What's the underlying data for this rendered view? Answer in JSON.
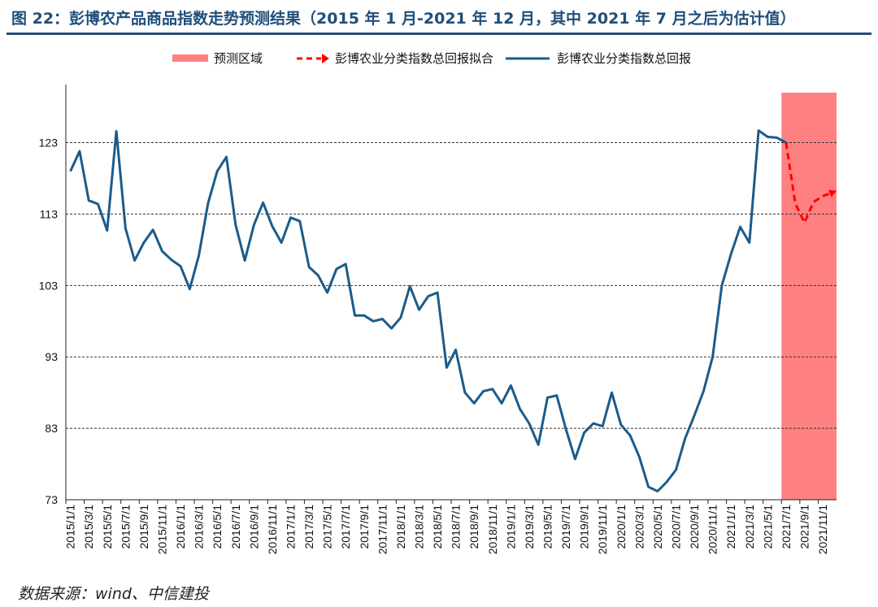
{
  "title": "图 22：彭博农产品商品指数走势预测结果（2015 年 1 月-2021 年 12 月，其中 2021 年 7 月之后为估计值）",
  "source": "数据来源：wind、中信建投",
  "colors": {
    "actual": "#1b5b8a",
    "forecast": "#ff0000",
    "forecast_region": "#ff8080",
    "title": "#1f4e79"
  },
  "chart_data": {
    "type": "line",
    "legend": [
      "预测区域",
      "彭博农业分类指数总回报拟合",
      "彭博农业分类指数总回报"
    ],
    "legend_position": "top",
    "grid": "horizontal-dashed",
    "ylim": [
      73,
      130
    ],
    "yticks": [
      73,
      83,
      93,
      103,
      113,
      123
    ],
    "xticks": [
      "2015/1/1",
      "2015/3/1",
      "2015/5/1",
      "2015/7/1",
      "2015/9/1",
      "2015/11/1",
      "2016/1/1",
      "2016/3/1",
      "2016/5/1",
      "2016/7/1",
      "2016/9/1",
      "2016/11/1",
      "2017/1/1",
      "2017/3/1",
      "2017/5/1",
      "2017/7/1",
      "2017/9/1",
      "2017/11/1",
      "2018/1/1",
      "2018/3/1",
      "2018/5/1",
      "2018/7/1",
      "2018/9/1",
      "2018/11/1",
      "2019/1/1",
      "2019/3/1",
      "2019/5/1",
      "2019/7/1",
      "2019/9/1",
      "2019/11/1",
      "2020/1/1",
      "2020/3/1",
      "2020/5/1",
      "2020/7/1",
      "2020/9/1",
      "2020/11/1",
      "2021/1/1",
      "2021/3/1",
      "2021/5/1",
      "2021/7/1",
      "2021/9/1",
      "2021/11/1"
    ],
    "forecast_region": {
      "from": "2021/7/1",
      "to": "2021/12/1"
    },
    "series": [
      {
        "name": "彭博农业分类指数总回报",
        "x": [
          "2015/1/1",
          "2015/2/1",
          "2015/3/1",
          "2015/4/1",
          "2015/5/1",
          "2015/6/1",
          "2015/7/1",
          "2015/8/1",
          "2015/9/1",
          "2015/10/1",
          "2015/11/1",
          "2015/12/1",
          "2016/1/1",
          "2016/2/1",
          "2016/3/1",
          "2016/4/1",
          "2016/5/1",
          "2016/6/1",
          "2016/7/1",
          "2016/8/1",
          "2016/9/1",
          "2016/10/1",
          "2016/11/1",
          "2016/12/1",
          "2017/1/1",
          "2017/2/1",
          "2017/3/1",
          "2017/4/1",
          "2017/5/1",
          "2017/6/1",
          "2017/7/1",
          "2017/8/1",
          "2017/9/1",
          "2017/10/1",
          "2017/11/1",
          "2017/12/1",
          "2018/1/1",
          "2018/2/1",
          "2018/3/1",
          "2018/4/1",
          "2018/5/1",
          "2018/6/1",
          "2018/7/1",
          "2018/8/1",
          "2018/9/1",
          "2018/10/1",
          "2018/11/1",
          "2018/12/1",
          "2019/1/1",
          "2019/2/1",
          "2019/3/1",
          "2019/4/1",
          "2019/5/1",
          "2019/6/1",
          "2019/7/1",
          "2019/8/1",
          "2019/9/1",
          "2019/10/1",
          "2019/11/1",
          "2019/12/1",
          "2020/1/1",
          "2020/2/1",
          "2020/3/1",
          "2020/4/1",
          "2020/5/1",
          "2020/6/1",
          "2020/7/1",
          "2020/8/1",
          "2020/9/1",
          "2020/10/1",
          "2020/11/1",
          "2020/12/1",
          "2021/1/1",
          "2021/2/1",
          "2021/3/1",
          "2021/4/1",
          "2021/5/1",
          "2021/6/1",
          "2021/7/1"
        ],
        "values": [
          119.0,
          121.8,
          114.9,
          114.4,
          110.7,
          124.6,
          111.0,
          106.5,
          109.0,
          110.8,
          107.8,
          106.6,
          105.7,
          102.5,
          107.2,
          114.5,
          119.0,
          121.0,
          111.5,
          106.5,
          111.5,
          114.6,
          111.3,
          109.0,
          112.5,
          112.0,
          105.6,
          104.4,
          102.0,
          105.3,
          106.0,
          98.8,
          98.8,
          98.0,
          98.3,
          97.0,
          98.5,
          102.9,
          99.6,
          101.5,
          102.0,
          91.5,
          94.0,
          88.0,
          86.5,
          88.2,
          88.5,
          86.5,
          89.0,
          85.7,
          83.7,
          80.7,
          87.3,
          87.6,
          82.9,
          78.7,
          82.4,
          83.7,
          83.3,
          88.0,
          83.5,
          82.0,
          79.0,
          74.8,
          74.2,
          75.5,
          77.2,
          81.6,
          84.8,
          88.2,
          93.0,
          103.0,
          107.4,
          111.2,
          109.0,
          124.7,
          123.8,
          123.7,
          123.0
        ]
      },
      {
        "name": "彭博农业分类指数总回报拟合",
        "x": [
          "2021/7/1",
          "2021/8/1",
          "2021/9/1",
          "2021/10/1",
          "2021/11/1",
          "2021/12/1"
        ],
        "values": [
          123.0,
          114.5,
          111.8,
          114.7,
          115.5,
          116.0
        ]
      }
    ]
  }
}
